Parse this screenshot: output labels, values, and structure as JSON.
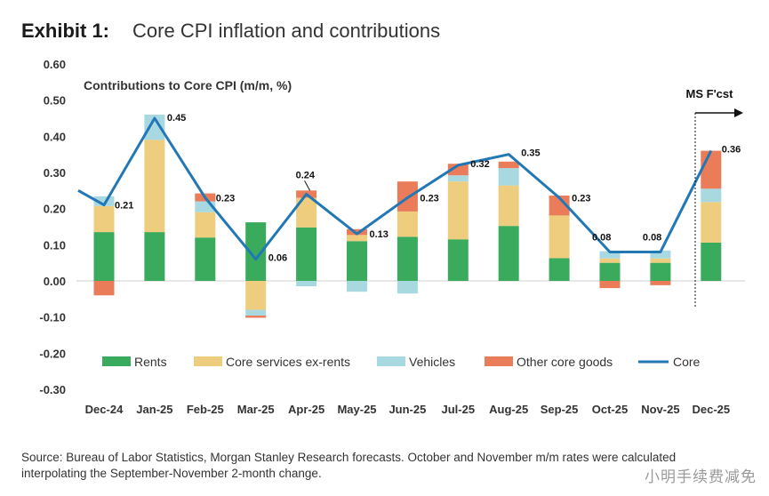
{
  "header": {
    "exhibit": "Exhibit 1:",
    "title": "Core CPI inflation and contributions"
  },
  "source": "Source: Bureau of Labor Statistics, Morgan Stanley Research forecasts. October and November m/m rates were calculated interpolating the September-November 2-month change.",
  "watermark": "小明手续费减免",
  "chart_data": {
    "type": "bar",
    "subtitle": "Contributions to Core CPI (m/m, %)",
    "forecast_label": "MS F'cst",
    "ylim": [
      -0.3,
      0.6
    ],
    "yticks": [
      "0.60",
      "0.50",
      "0.40",
      "0.30",
      "0.20",
      "0.10",
      "0.00",
      "-0.10",
      "-0.20",
      "-0.30"
    ],
    "ytick_values": [
      0.6,
      0.5,
      0.4,
      0.3,
      0.2,
      0.1,
      0.0,
      -0.1,
      -0.2,
      -0.3
    ],
    "categories": [
      "Dec-24",
      "Jan-25",
      "Feb-25",
      "Mar-25",
      "Apr-25",
      "May-25",
      "Jun-25",
      "Jul-25",
      "Aug-25",
      "Sep-25",
      "Oct-25",
      "Nov-25",
      "Dec-25"
    ],
    "series": [
      {
        "name": "Rents",
        "color": "#3aaa5c",
        "values": [
          0.135,
          0.135,
          0.12,
          0.162,
          0.148,
          0.11,
          0.122,
          0.115,
          0.152,
          0.063,
          0.05,
          0.05,
          0.106
        ]
      },
      {
        "name": "Core services ex-rents",
        "color": "#efcd7e",
        "values": [
          0.072,
          0.255,
          0.07,
          -0.08,
          0.082,
          0.017,
          0.07,
          0.16,
          0.112,
          0.118,
          0.012,
          0.012,
          0.112
        ]
      },
      {
        "name": "Vehicles",
        "color": "#a8d8e0",
        "values": [
          0.027,
          0.07,
          0.03,
          -0.016,
          -0.015,
          -0.03,
          -0.035,
          0.017,
          0.048,
          0.0,
          0.02,
          0.022,
          0.037
        ]
      },
      {
        "name": "Other core goods",
        "color": "#ea7c5a",
        "values": [
          -0.04,
          0.0,
          0.022,
          -0.006,
          0.02,
          0.016,
          0.083,
          0.032,
          0.018,
          0.055,
          -0.02,
          -0.012,
          0.105
        ]
      }
    ],
    "core": {
      "name": "Core",
      "color": "#2277b5",
      "lead_in": 0.25,
      "values": [
        0.21,
        0.45,
        0.23,
        0.06,
        0.24,
        0.13,
        0.23,
        0.32,
        0.35,
        0.23,
        0.08,
        0.08,
        0.36
      ],
      "labels": [
        "0.21",
        "0.45",
        "0.23",
        "0.06",
        "0.24",
        "0.13",
        "0.23",
        "0.32",
        "0.35",
        "0.23",
        "0.08",
        "0.08",
        "0.36"
      ]
    },
    "legend_placement": "bottom",
    "grid": false
  }
}
